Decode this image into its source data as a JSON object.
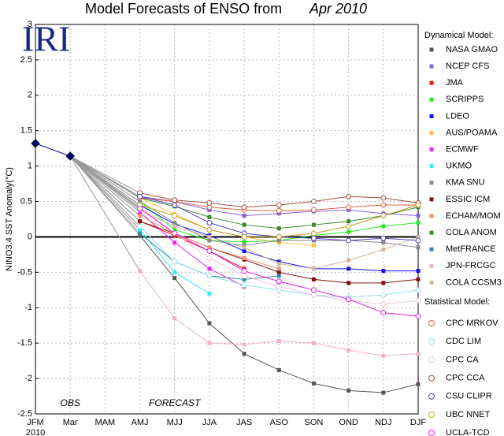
{
  "chart_data": {
    "type": "line",
    "title": "Model Forecasts of ENSO from",
    "title_date": "Apr 2010",
    "logo": "IRI",
    "ylabel": "NINO3.4 SST Anomaly(°C)",
    "categories": [
      "JFM",
      "Mar",
      "MAM",
      "AMJ",
      "MJJ",
      "JJA",
      "JAS",
      "ASO",
      "SON",
      "OND",
      "NDJ",
      "DJF"
    ],
    "x_sublabel": "2010",
    "annotations": [
      "OBS",
      "FORECAST"
    ],
    "obs_values": [
      1.32,
      1.14
    ],
    "obs_color": "#000080",
    "ylim": [
      -2.5,
      3
    ],
    "yticks": [
      -2.5,
      -2,
      -1.5,
      -1,
      -0.5,
      0,
      0.5,
      1,
      1.5,
      2,
      2.5,
      3
    ],
    "grid": true,
    "groups": [
      {
        "title": "Dynamical Model:",
        "marker": "square",
        "series": [
          {
            "name": "NASA GMAO",
            "color": "#555555",
            "values": [
              null,
              null,
              null,
              0.02,
              -0.58,
              -1.22,
              -1.65,
              -1.88,
              -2.07,
              -2.17,
              -2.2,
              -2.08
            ]
          },
          {
            "name": "NCEP CFS",
            "color": "#8060e0",
            "values": [
              null,
              null,
              null,
              0.57,
              0.5,
              0.38,
              0.3,
              0.33,
              0.36,
              0.38,
              0.33,
              0.3
            ]
          },
          {
            "name": "JMA",
            "color": "#ee1111",
            "values": [
              null,
              null,
              null,
              0.22,
              0.02,
              -0.2,
              -0.45,
              null,
              null,
              null,
              null,
              null
            ]
          },
          {
            "name": "SCRIPPS",
            "color": "#22ee22",
            "values": [
              null,
              null,
              null,
              0.5,
              0.1,
              -0.05,
              -0.07,
              -0.05,
              0.02,
              0.07,
              0.15,
              0.2
            ]
          },
          {
            "name": "LDEO",
            "color": "#1111ee",
            "values": [
              null,
              null,
              null,
              0.45,
              0.18,
              0.02,
              -0.2,
              -0.35,
              -0.45,
              -0.45,
              -0.48,
              -0.48
            ]
          },
          {
            "name": "AUS/POAMA",
            "color": "#f5c040",
            "values": [
              null,
              null,
              null,
              0.55,
              0.32,
              0.1,
              0.0,
              -0.08,
              -0.12,
              null,
              null,
              null
            ]
          },
          {
            "name": "ECMWF",
            "color": "#ee22ee",
            "values": [
              null,
              null,
              null,
              0.35,
              -0.08,
              -0.45,
              -0.7,
              null,
              null,
              null,
              null,
              null
            ]
          },
          {
            "name": "UKMO",
            "color": "#33eeee",
            "values": [
              null,
              null,
              null,
              0.1,
              -0.5,
              -0.8,
              null,
              null,
              null,
              null,
              null,
              null
            ]
          },
          {
            "name": "KMA SNU",
            "color": "#888888",
            "values": [
              null,
              null,
              null,
              0.5,
              0.2,
              -0.05,
              -0.12,
              -0.05,
              -0.05,
              -0.05,
              -0.08,
              -0.15
            ]
          },
          {
            "name": "ESSIC ICM",
            "color": "#801010",
            "values": [
              null,
              null,
              null,
              0.22,
              0.05,
              -0.15,
              -0.32,
              -0.5,
              -0.6,
              -0.65,
              -0.65,
              -0.6
            ]
          },
          {
            "name": "ECHAM/MOM",
            "color": "#f09070",
            "values": [
              null,
              null,
              null,
              0.3,
              0.05,
              -0.15,
              -0.3,
              -0.45,
              null,
              null,
              null,
              null
            ]
          },
          {
            "name": "COLA ANOM",
            "color": "#3a8a2a",
            "values": [
              null,
              null,
              null,
              0.55,
              0.43,
              0.28,
              0.17,
              0.12,
              0.17,
              0.22,
              0.3,
              0.42
            ]
          },
          {
            "name": "MetFRANCE",
            "color": "#3a88b0",
            "values": [
              null,
              null,
              null,
              0.05,
              -0.35,
              -0.55,
              -0.6,
              -0.55,
              null,
              null,
              null,
              null
            ]
          },
          {
            "name": "JPN-FRCGC",
            "color": "#f0b0d0",
            "values": [
              null,
              null,
              null,
              -0.48,
              -1.15,
              -1.5,
              -1.52,
              -1.47,
              -1.5,
              -1.6,
              -1.68,
              -1.65
            ]
          },
          {
            "name": "COLA CCSM3",
            "color": "#d0b8a0",
            "values": [
              null,
              null,
              null,
              0.38,
              0.15,
              0.0,
              -0.15,
              -0.38,
              -0.45,
              -0.33,
              -0.18,
              0.0
            ]
          }
        ]
      },
      {
        "title": "Statistical Model:",
        "marker": "circle",
        "series": [
          {
            "name": "CPC MRKOV",
            "color": "#e06040",
            "values": [
              null,
              null,
              null,
              0.55,
              0.5,
              0.42,
              0.38,
              0.37,
              0.38,
              0.42,
              0.45,
              0.45
            ]
          },
          {
            "name": "CDC LIM",
            "color": "#90e0e8",
            "values": [
              null,
              null,
              null,
              0.15,
              -0.35,
              -0.55,
              -0.68,
              -0.75,
              -0.82,
              -0.85,
              -0.82,
              -0.75
            ]
          },
          {
            "name": "CPC CA",
            "color": "#f4c0d8",
            "values": [
              null,
              null,
              null,
              0.42,
              0.05,
              -0.3,
              -0.55,
              -0.7,
              -0.82,
              -0.9,
              -0.95,
              -0.9
            ]
          },
          {
            "name": "CPC CCA",
            "color": "#a05040",
            "values": [
              null,
              null,
              null,
              0.62,
              0.52,
              0.48,
              0.42,
              0.45,
              0.5,
              0.57,
              0.55,
              0.48
            ]
          },
          {
            "name": "CSU CLIPR",
            "color": "#5040c0",
            "values": [
              null,
              null,
              null,
              0.57,
              0.45,
              0.2,
              0.05,
              0.0,
              -0.02,
              -0.05,
              -0.02,
              -0.05
            ]
          },
          {
            "name": "UBC NNET",
            "color": "#c0a020",
            "values": [
              null,
              null,
              null,
              0.45,
              0.3,
              0.1,
              0.0,
              0.0,
              0.05,
              0.15,
              0.3,
              0.45
            ]
          },
          {
            "name": "UCLA-TCD",
            "color": "#e020e0",
            "values": [
              null,
              null,
              null,
              0.4,
              0.05,
              -0.2,
              -0.48,
              -0.63,
              -0.75,
              -0.88,
              -1.07,
              -1.12
            ]
          }
        ]
      }
    ]
  }
}
